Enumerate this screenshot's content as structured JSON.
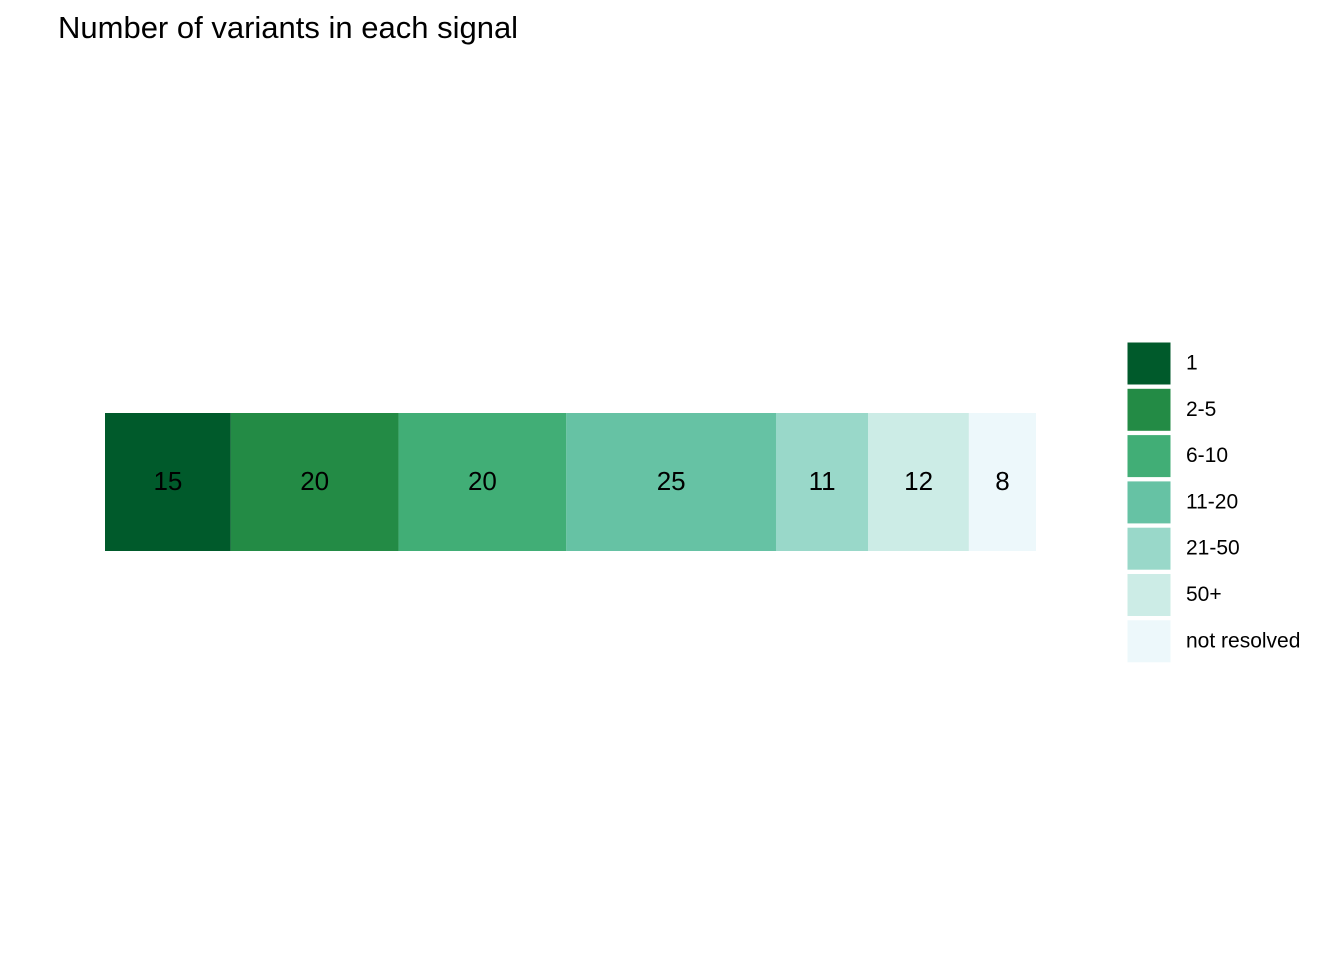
{
  "chart_data": {
    "type": "stacked-bar",
    "title": "Number of variants in each signal",
    "series": [
      {
        "name": "1",
        "color": "#005a2b",
        "values": [
          15
        ]
      },
      {
        "name": "2-5",
        "color": "#238b45",
        "values": [
          20
        ]
      },
      {
        "name": "6-10",
        "color": "#41ae76",
        "values": [
          20
        ]
      },
      {
        "name": "11-20",
        "color": "#66c2a4",
        "values": [
          25
        ]
      },
      {
        "name": "21-50",
        "color": "#99d8c9",
        "values": [
          11
        ]
      },
      {
        "name": "50+",
        "color": "#ccece6",
        "values": [
          12
        ]
      },
      {
        "name": "not resolved",
        "color": "#edf8fb",
        "values": [
          8
        ]
      }
    ]
  }
}
